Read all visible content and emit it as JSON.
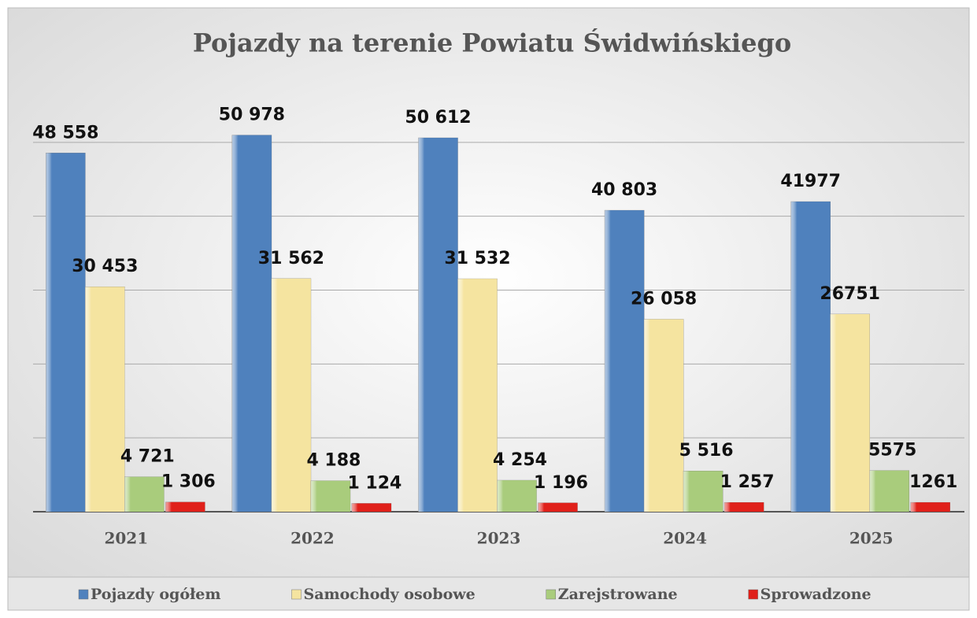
{
  "chart_data": {
    "type": "bar",
    "title": "Pojazdy na terenie Powiatu Świdwińskiego",
    "categories": [
      "2021",
      "2022",
      "2023",
      "2024",
      "2025"
    ],
    "series": [
      {
        "name": "Pojazdy ogółem",
        "color": "#4f81bd",
        "values": [
          48558,
          50978,
          50612,
          40803,
          41977
        ],
        "value_labels": [
          "48 558",
          "50 978",
          "50 612",
          "40 803",
          "41977"
        ]
      },
      {
        "name": "Samochody osobowe",
        "color": "#f5e4a0",
        "values": [
          30453,
          31562,
          31532,
          26058,
          26751
        ],
        "value_labels": [
          "30 453",
          "31 562",
          "31 532",
          "26 058",
          "26751"
        ]
      },
      {
        "name": "Zarejstrowane",
        "color": "#a9cc7c",
        "values": [
          4721,
          4188,
          4254,
          5516,
          5575
        ],
        "value_labels": [
          "4 721",
          "4 188",
          "4 254",
          "5 516",
          "5575"
        ]
      },
      {
        "name": "Sprowadzone",
        "color": "#e0201a",
        "values": [
          1306,
          1124,
          1196,
          1257,
          1261
        ],
        "value_labels": [
          "1 306",
          "1 124",
          "1 196",
          "1 257",
          "1261"
        ]
      }
    ],
    "ylim": [
      0,
      60000
    ],
    "yticks": [
      0,
      10000,
      20000,
      30000,
      40000,
      50000
    ],
    "grid": true,
    "legend": "bottom"
  }
}
